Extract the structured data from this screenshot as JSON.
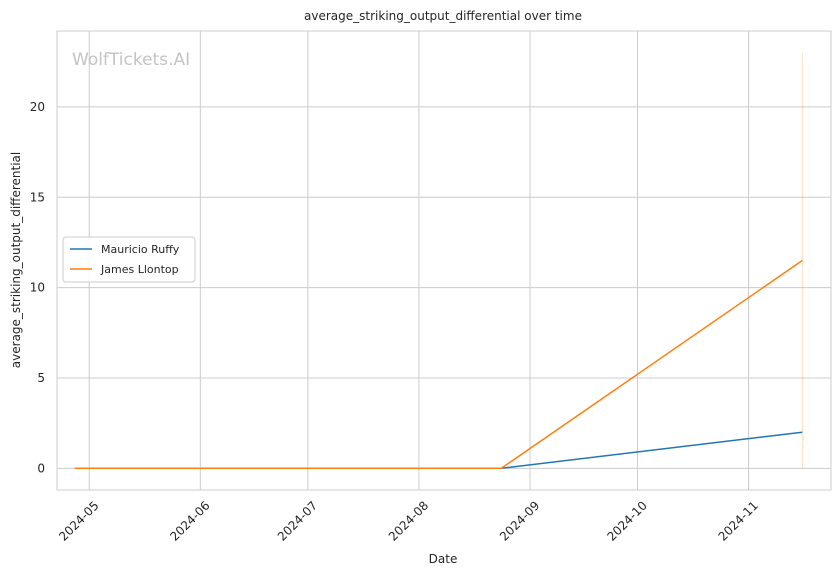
{
  "chart_data": {
    "type": "line",
    "title": "average_striking_output_differential over time",
    "xlabel": "Date",
    "ylabel": "average_striking_output_differential",
    "watermark": "WolfTickets.AI",
    "grid": true,
    "legend_position": "center-left",
    "xlim": [
      "2024-04-22",
      "2024-11-24"
    ],
    "ylim": [
      -1.2,
      24.2
    ],
    "x_ticks": [
      "2024-05-01",
      "2024-06-01",
      "2024-07-01",
      "2024-08-01",
      "2024-09-01",
      "2024-10-01",
      "2024-11-01"
    ],
    "x_tick_labels": [
      "2024-05",
      "2024-06",
      "2024-07",
      "2024-08",
      "2024-09",
      "2024-10",
      "2024-11"
    ],
    "y_ticks": [
      0,
      5,
      10,
      15,
      20
    ],
    "y_tick_labels": [
      "0",
      "5",
      "10",
      "15",
      "20"
    ],
    "series": [
      {
        "name": "Mauricio Ruffy",
        "color": "#1f77b4",
        "x": [
          "2024-04-27",
          "2024-08-24",
          "2024-11-16"
        ],
        "y": [
          0,
          0,
          2
        ]
      },
      {
        "name": "James Llontop",
        "color": "#ff7f0e",
        "x": [
          "2024-04-27",
          "2024-08-24",
          "2024-11-16"
        ],
        "y": [
          0,
          0,
          11.5
        ]
      }
    ],
    "vertical_range": {
      "color": "#ff7f0e",
      "x": "2024-11-16",
      "y": [
        0,
        23
      ]
    }
  }
}
